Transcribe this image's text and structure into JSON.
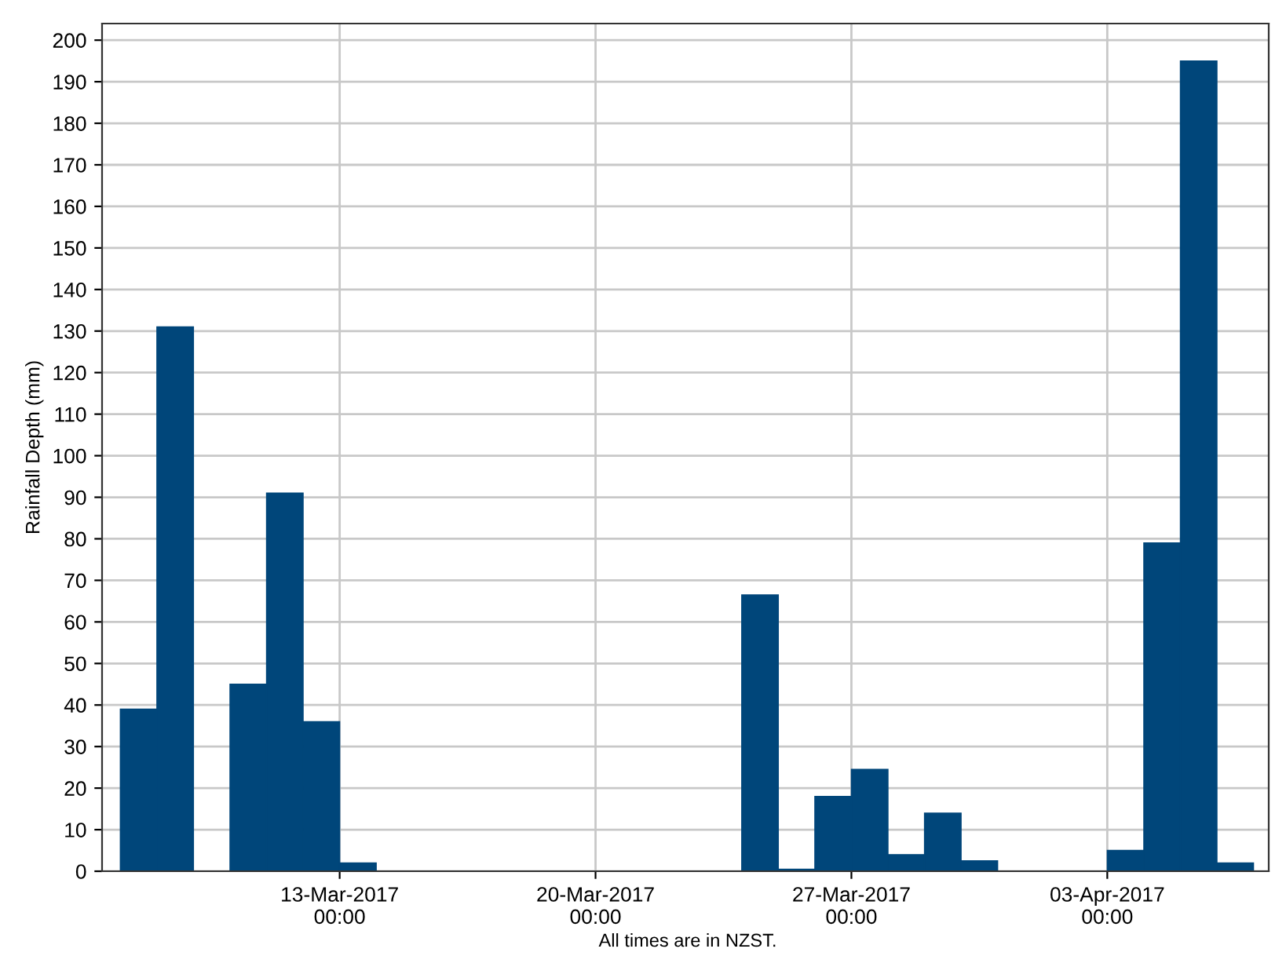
{
  "chart_data": {
    "type": "bar",
    "ylabel": "Rainfall Depth (mm)",
    "x": [
      "2017-03-07T12:00",
      "2017-03-08T12:00",
      "2017-03-10T12:00",
      "2017-03-11T12:00",
      "2017-03-12T12:00",
      "2017-03-13T12:00",
      "2017-03-24T12:00",
      "2017-03-25T12:00",
      "2017-03-26T12:00",
      "2017-03-27T12:00",
      "2017-03-28T12:00",
      "2017-03-29T12:00",
      "2017-03-30T12:00",
      "2017-04-03T12:00",
      "2017-04-04T12:00",
      "2017-04-05T12:00",
      "2017-04-06T12:00"
    ],
    "values": [
      39,
      131,
      45,
      91,
      36,
      2,
      66.5,
      0.5,
      18,
      24.5,
      4,
      14,
      2.5,
      5,
      79,
      195,
      2
    ],
    "color": "#00467a",
    "xlim": [
      "2017-03-06T12:00",
      "2017-04-07T10:00"
    ],
    "xticks": [
      {
        "value": "2017-03-13",
        "label": "13-Mar-2017\n00:00"
      },
      {
        "value": "2017-03-20",
        "label": "20-Mar-2017\n00:00"
      },
      {
        "value": "2017-03-27",
        "label": "27-Mar-2017\n00:00"
      },
      {
        "value": "2017-04-03",
        "label": "03-Apr-2017\n00:00"
      }
    ],
    "ylim": [
      0,
      204
    ],
    "yticks": [
      0,
      10,
      20,
      30,
      40,
      50,
      60,
      70,
      80,
      90,
      100,
      110,
      120,
      130,
      140,
      150,
      160,
      170,
      180,
      190,
      200
    ],
    "grid": true,
    "annotations": [
      "All times are in NZST."
    ]
  }
}
